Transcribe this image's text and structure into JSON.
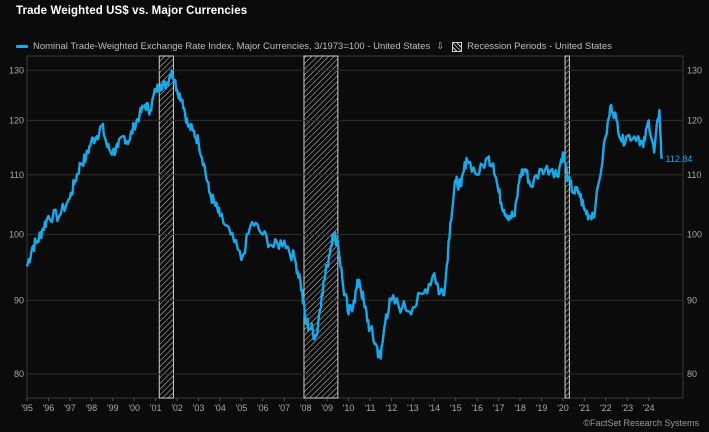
{
  "chart_data": {
    "type": "line",
    "title": "Trade Weighted US$ vs. Major Currencies",
    "series": [
      {
        "name": "Nominal Trade-Weighted Exchange Rate Index, Major Currencies, 3/1973=100 - United States",
        "color": "#19a9e8",
        "x": [
          1995.0,
          1995.25,
          1995.5,
          1995.75,
          1996.0,
          1996.5,
          1997.0,
          1997.25,
          1997.5,
          1997.75,
          1998.0,
          1998.25,
          1998.5,
          1998.75,
          1999.0,
          1999.25,
          1999.5,
          1999.75,
          2000.0,
          2000.25,
          2000.5,
          2000.75,
          2001.0,
          2001.25,
          2001.5,
          2001.75,
          2002.0,
          2002.25,
          2002.5,
          2002.75,
          2003.0,
          2003.25,
          2003.5,
          2003.75,
          2004.0,
          2004.5,
          2005.0,
          2005.5,
          2006.0,
          2006.5,
          2007.0,
          2007.5,
          2007.75,
          2008.0,
          2008.25,
          2008.5,
          2008.75,
          2009.0,
          2009.25,
          2009.5,
          2009.75,
          2010.0,
          2010.25,
          2010.5,
          2010.75,
          2011.0,
          2011.25,
          2011.5,
          2011.75,
          2012.0,
          2012.5,
          2013.0,
          2013.5,
          2014.0,
          2014.25,
          2014.5,
          2014.75,
          2015.0,
          2015.25,
          2015.5,
          2016.0,
          2016.5,
          2016.75,
          2017.0,
          2017.25,
          2017.5,
          2017.75,
          2018.0,
          2018.25,
          2018.5,
          2019.0,
          2019.5,
          2019.75,
          2020.0,
          2020.25,
          2020.5,
          2020.75,
          2021.0,
          2021.25,
          2021.5,
          2022.0,
          2022.25,
          2022.5,
          2022.75,
          2023.0,
          2023.5,
          2023.75,
          2024.0,
          2024.25,
          2024.5,
          2024.6
        ],
        "values": [
          95,
          98,
          99,
          101,
          103,
          103,
          106,
          109,
          112,
          113,
          116,
          117,
          119,
          115,
          114,
          115,
          117,
          116,
          119,
          121,
          123,
          122,
          126,
          127,
          127,
          130,
          126,
          124,
          119,
          118,
          116,
          112,
          107,
          105,
          103,
          100,
          96,
          102,
          100,
          98,
          99,
          96,
          93,
          87,
          86,
          85,
          91,
          95,
          100,
          99,
          92,
          88,
          90,
          93,
          89,
          86,
          84,
          82,
          88,
          90,
          89,
          89,
          91,
          94,
          91,
          92,
          102,
          109,
          108,
          113,
          110,
          113,
          112,
          107,
          104,
          103,
          103,
          110,
          111,
          108,
          111,
          111,
          110,
          114,
          109,
          107,
          107,
          104,
          103,
          104,
          117,
          123,
          120,
          116,
          117,
          117,
          115,
          120,
          114,
          122,
          112.84
        ]
      }
    ],
    "recessions": [
      [
        2001.17,
        2001.83
      ],
      [
        2007.92,
        2009.5
      ],
      [
        2020.1,
        2020.3
      ]
    ],
    "xlim": [
      1995.0,
      2025.6
    ],
    "ylim": [
      77,
      133
    ],
    "yscale": "log",
    "yticks": [
      80,
      90,
      100,
      110,
      120,
      130
    ],
    "xticks": [
      "'95",
      "'96",
      "'97",
      "'98",
      "'99",
      "'00",
      "'01",
      "'02",
      "'03",
      "'04",
      "'05",
      "'06",
      "'07",
      "'08",
      "'09",
      "'10",
      "'11",
      "'12",
      "'13",
      "'14",
      "'15",
      "'16",
      "'17",
      "'18",
      "'19",
      "'20",
      "'21",
      "'22",
      "'23",
      "'24"
    ],
    "grid": true,
    "legend_placement": "top-left",
    "last_value_label": "112.84"
  },
  "legend": {
    "series_label": "Nominal Trade-Weighted Exchange Rate Index, Major Currencies, 3/1973=100 - United States",
    "marker_label": "⇩",
    "recession_label": "Recession Periods - United States"
  },
  "credit": "©FactSet Research Systems",
  "colors": {
    "background": "#0b0b0b",
    "line": "#19a9e8",
    "grid": "#2e2e2e",
    "recession_hatch": "#d0d0d0"
  }
}
